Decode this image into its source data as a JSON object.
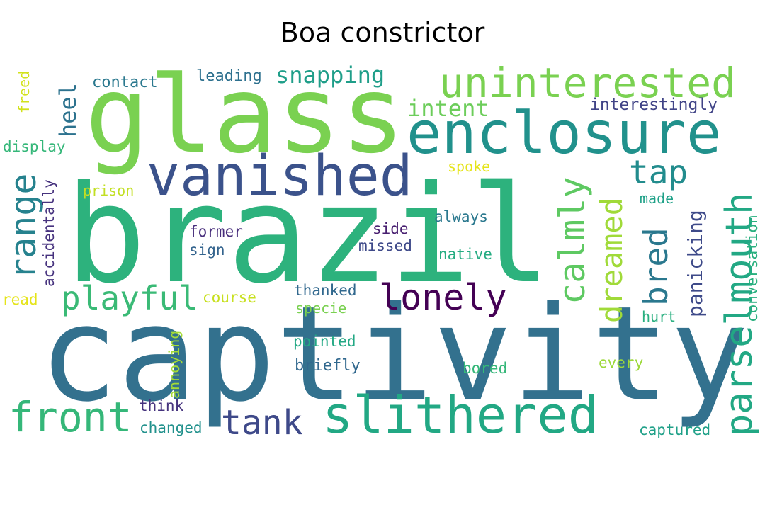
{
  "title": "Boa constrictor",
  "words": [
    {
      "text": "captivity",
      "color": "#33718e"
    },
    {
      "text": "brazil",
      "color": "#2db27d"
    },
    {
      "text": "glass",
      "color": "#7ad151"
    },
    {
      "text": "enclosure",
      "color": "#21918c"
    },
    {
      "text": "vanished",
      "color": "#3b528b"
    },
    {
      "text": "slithered",
      "color": "#22a884"
    },
    {
      "text": "uninterested",
      "color": "#7ad151"
    },
    {
      "text": "parselmouth",
      "color": "#22a884"
    },
    {
      "text": "range",
      "color": "#26828e"
    },
    {
      "text": "calmly",
      "color": "#5ec962"
    },
    {
      "text": "front",
      "color": "#35b779"
    },
    {
      "text": "lonely",
      "color": "#440154"
    },
    {
      "text": "playful",
      "color": "#3aba76"
    },
    {
      "text": "dreamed",
      "color": "#a0da39"
    },
    {
      "text": "tank",
      "color": "#3e4989"
    },
    {
      "text": "bred",
      "color": "#2a788e"
    },
    {
      "text": "tap",
      "color": "#228c8d"
    },
    {
      "text": "snapping",
      "color": "#1f9e89"
    },
    {
      "text": "intent",
      "color": "#6ccd5a"
    },
    {
      "text": "heel",
      "color": "#2c728e"
    },
    {
      "text": "panicking",
      "color": "#3e4a89"
    },
    {
      "text": "interestingly",
      "color": "#414487"
    },
    {
      "text": "leading",
      "color": "#2d708e"
    },
    {
      "text": "contact",
      "color": "#2a788e"
    },
    {
      "text": "accidentally",
      "color": "#46327e"
    },
    {
      "text": "display",
      "color": "#35b779"
    },
    {
      "text": "freed",
      "color": "#d2e21b"
    },
    {
      "text": "prison",
      "color": "#c2df23"
    },
    {
      "text": "spoke",
      "color": "#e5e419"
    },
    {
      "text": "always",
      "color": "#2a788e"
    },
    {
      "text": "made",
      "color": "#1fa188"
    },
    {
      "text": "conversation",
      "color": "#2ab07f"
    },
    {
      "text": "former",
      "color": "#472d7b"
    },
    {
      "text": "sign",
      "color": "#33638d"
    },
    {
      "text": "side",
      "color": "#481f70"
    },
    {
      "text": "missed",
      "color": "#3e4989"
    },
    {
      "text": "native",
      "color": "#25ac82"
    },
    {
      "text": "read",
      "color": "#e5e419"
    },
    {
      "text": "course",
      "color": "#c8e020"
    },
    {
      "text": "thanked",
      "color": "#31688e"
    },
    {
      "text": "specie",
      "color": "#7ad151"
    },
    {
      "text": "hurt",
      "color": "#29af7f"
    },
    {
      "text": "pointed",
      "color": "#22a884"
    },
    {
      "text": "briefly",
      "color": "#31688e"
    },
    {
      "text": "annoying",
      "color": "#a5db36"
    },
    {
      "text": "every",
      "color": "#9dd93b"
    },
    {
      "text": "bored",
      "color": "#35b779"
    },
    {
      "text": "think",
      "color": "#46337e"
    },
    {
      "text": "changed",
      "color": "#21918c"
    },
    {
      "text": "captured",
      "color": "#1fa088"
    }
  ]
}
